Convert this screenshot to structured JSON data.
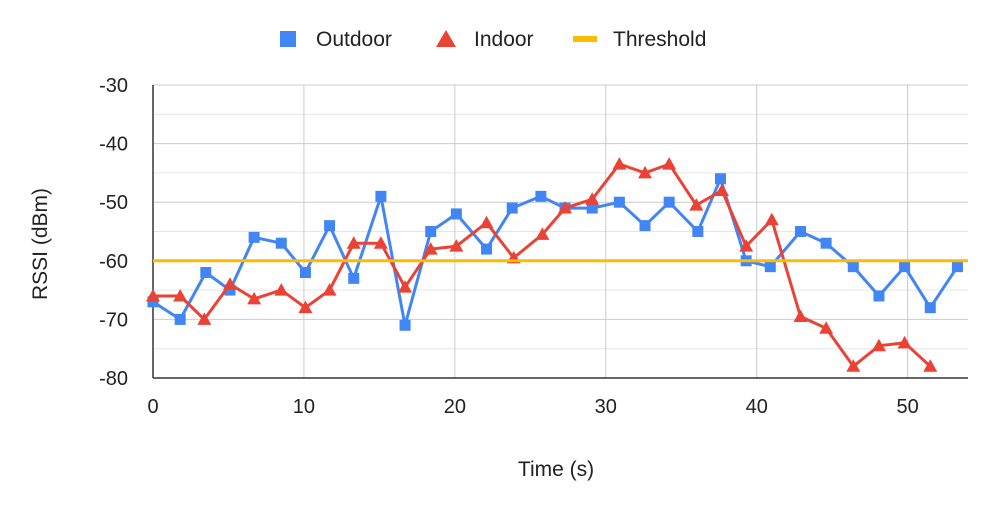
{
  "chart_data": {
    "type": "line",
    "title": "",
    "xlabel": "Time (s)",
    "ylabel": "RSSI (dBm)",
    "xlim": [
      0,
      54
    ],
    "ylim": [
      -80,
      -30
    ],
    "x_ticks": [
      0,
      10,
      20,
      30,
      40,
      50
    ],
    "y_ticks": [
      -30,
      -40,
      -50,
      -60,
      -70,
      -80
    ],
    "grid": true,
    "legend_position": "top",
    "series": [
      {
        "name": "Outdoor",
        "color": "#4285f4",
        "marker": "square",
        "x": [
          0,
          1.8,
          3.5,
          5.1,
          6.7,
          8.5,
          10.1,
          11.7,
          13.3,
          15.1,
          16.7,
          18.4,
          20.1,
          22.1,
          23.8,
          25.7,
          27.3,
          29.1,
          30.9,
          32.6,
          34.2,
          36.1,
          37.6,
          39.3,
          40.9,
          42.9,
          44.6,
          46.4,
          48.1,
          49.8,
          51.5,
          53.3
        ],
        "y": [
          -67,
          -70,
          -62,
          -65,
          -56,
          -57,
          -62,
          -54,
          -63,
          -49,
          -71,
          -55,
          -52,
          -58,
          -51,
          -49,
          -51,
          -51,
          -50,
          -54,
          -50,
          -55,
          -46,
          -60,
          -61,
          -55,
          -57,
          -61,
          -66,
          -61,
          -68,
          -61
        ]
      },
      {
        "name": "Indoor",
        "color": "#ea4335",
        "marker": "triangle",
        "x": [
          0,
          1.8,
          3.4,
          5.1,
          6.7,
          8.5,
          10.1,
          11.7,
          13.3,
          15.1,
          16.7,
          18.4,
          20.1,
          22.1,
          23.9,
          25.8,
          27.3,
          29.1,
          30.9,
          32.6,
          34.2,
          36,
          37.7,
          39.3,
          41,
          42.9,
          44.6,
          46.4,
          48.1,
          49.8,
          51.5
        ],
        "y": [
          -66,
          -66,
          -70,
          -64,
          -66.5,
          -65,
          -68,
          -65,
          -57,
          -57,
          -64.5,
          -58,
          -57.5,
          -53.5,
          -59.5,
          -55.5,
          -51,
          -49.5,
          -43.5,
          -45,
          -43.5,
          -50.5,
          -48,
          -57.5,
          -53,
          -69.5,
          -71.5,
          -78,
          -74.5,
          -74,
          -78
        ]
      },
      {
        "name": "Threshold",
        "color": "#fbbc04",
        "marker": "none",
        "x": [
          0,
          54
        ],
        "y": [
          -60,
          -60
        ]
      }
    ]
  }
}
